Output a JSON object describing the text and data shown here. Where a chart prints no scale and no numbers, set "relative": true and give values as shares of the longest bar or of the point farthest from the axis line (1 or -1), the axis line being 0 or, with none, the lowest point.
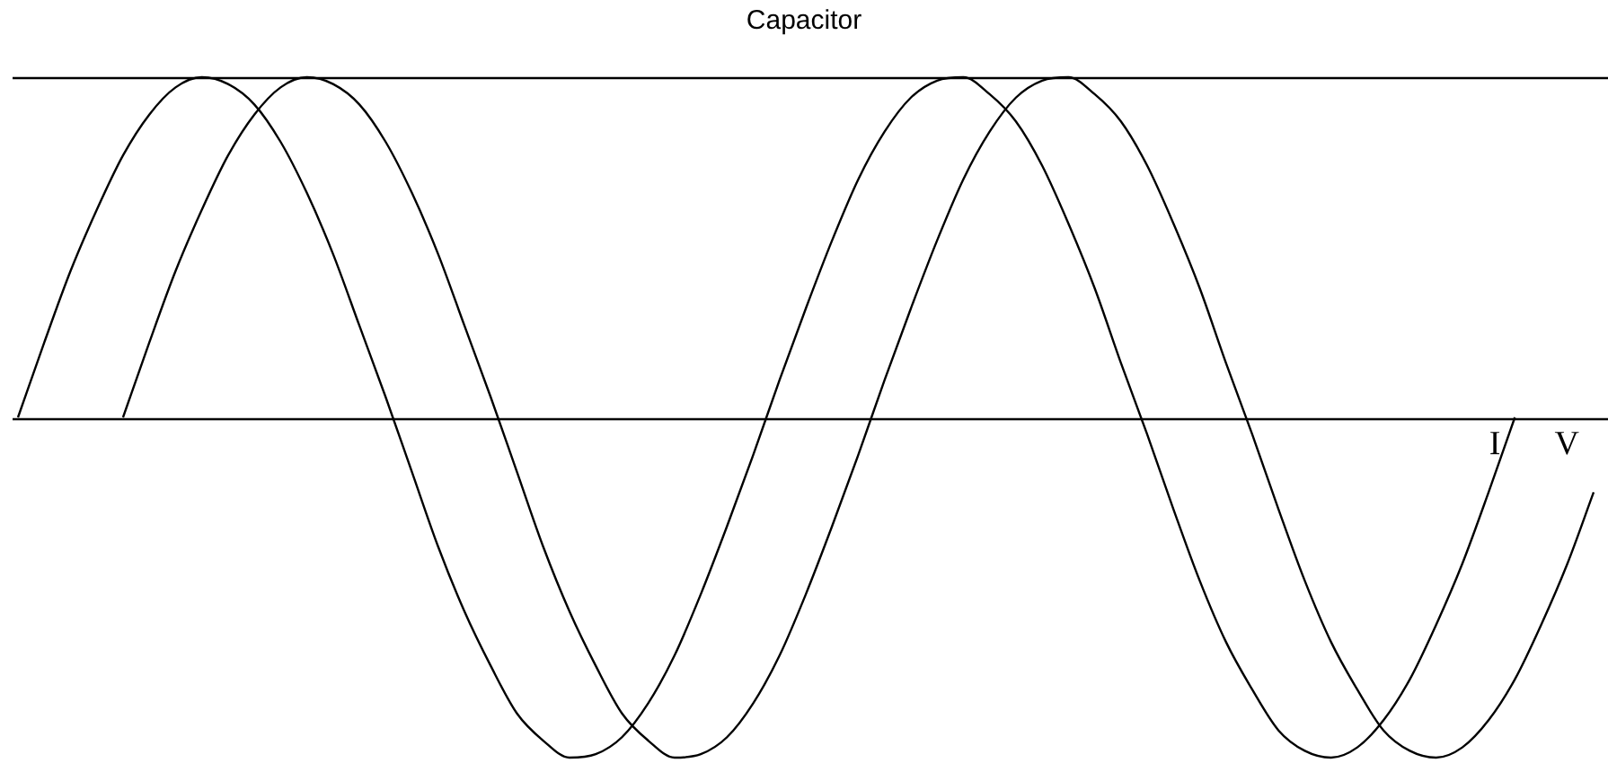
{
  "chart_data": {
    "type": "line",
    "title": "Capacitor",
    "relative": true,
    "legend": false,
    "marker": "none",
    "line_style": "solid",
    "categories": [
      null,
      null,
      null,
      null,
      null,
      null,
      null,
      null,
      null,
      null,
      null,
      null,
      null,
      null,
      null,
      null,
      null,
      null,
      null,
      null,
      null,
      null,
      null,
      null,
      null,
      null,
      null,
      null,
      null,
      null,
      null,
      null,
      null,
      null,
      null,
      null,
      null,
      null,
      null,
      null,
      null,
      null,
      null,
      null,
      null,
      null,
      null,
      null,
      null,
      null,
      null,
      null,
      null,
      null,
      null,
      null,
      null,
      null,
      null,
      null,
      null
    ],
    "ref_lines": [
      {
        "axis": "y",
        "value": 1,
        "color": "#000000"
      }
    ],
    "series": [
      {
        "name": "I",
        "color": "#000000",
        "values": [
          0,
          0.22,
          0.43,
          0.61,
          0.77,
          0.89,
          0.97,
          1.0,
          0.98,
          0.92,
          0.81,
          0.66,
          0.48,
          0.27,
          0.06,
          -0.16,
          -0.38,
          -0.57,
          -0.73,
          -0.87,
          -0.95,
          -1.0,
          -0.99,
          -0.94,
          -0.84,
          -0.7,
          -0.52,
          -0.32,
          -0.11,
          0.11,
          0.32,
          0.52,
          0.7,
          0.84,
          0.94,
          0.99,
          1.0,
          0.95,
          0.87,
          0.74,
          0.57,
          0.38,
          0.16,
          -0.05,
          -0.27,
          -0.48,
          -0.66,
          -0.8,
          -0.92,
          -0.98,
          -1.0,
          -0.97,
          -0.89,
          -0.77,
          -0.61,
          -0.43,
          -0.22,
          0,
          null,
          null,
          null
        ]
      },
      {
        "name": "V",
        "color": "#000000",
        "values": [
          null,
          null,
          null,
          null,
          0,
          0.22,
          0.43,
          0.61,
          0.77,
          0.89,
          0.97,
          1.0,
          0.98,
          0.92,
          0.81,
          0.66,
          0.48,
          0.27,
          0.06,
          -0.16,
          -0.38,
          -0.57,
          -0.73,
          -0.87,
          -0.95,
          -1.0,
          -0.99,
          -0.94,
          -0.84,
          -0.7,
          -0.52,
          -0.32,
          -0.11,
          0.11,
          0.32,
          0.52,
          0.7,
          0.84,
          0.94,
          0.99,
          1.0,
          0.95,
          0.87,
          0.74,
          0.57,
          0.38,
          0.16,
          -0.05,
          -0.27,
          -0.48,
          -0.66,
          -0.8,
          -0.92,
          -0.98,
          -1.0,
          -0.97,
          -0.89,
          -0.77,
          -0.61,
          -0.43,
          -0.22
        ]
      }
    ]
  }
}
